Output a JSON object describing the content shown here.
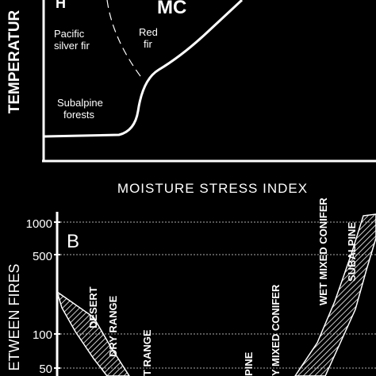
{
  "chart_data": [
    {
      "type": "diagram",
      "xlabel": "MOISTURE STRESS INDEX",
      "ylabel": "TEMPERATUR",
      "annotations": {
        "top_left_fragment": "H",
        "top_right_fragment": "MC",
        "pacific_silver_fir": [
          "Pacific",
          "silver fir"
        ],
        "red_fir": [
          "Red",
          "fir"
        ],
        "subalpine_forests": [
          "Subalpine",
          "forests"
        ]
      }
    },
    {
      "type": "area",
      "panel_label": "B",
      "ylabel": "ETWEEN FIRES",
      "yscale": "log",
      "yticks": [
        "1000",
        "500",
        "100",
        "50"
      ],
      "zone_labels": [
        "DESERT",
        "DRY RANGE",
        "T RANGE",
        "PINE",
        "Y MIXED CONIFER",
        "WET MIXED CONIFER",
        "SUBALPINE"
      ]
    }
  ]
}
